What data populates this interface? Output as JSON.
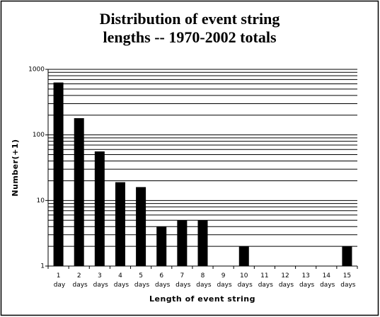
{
  "chart_data": {
    "type": "bar",
    "title": [
      "Distribution of event string",
      "lengths -- 1970-2002 totals"
    ],
    "x_label": "Length of event string",
    "y_label": "Number(+1)",
    "categories": [
      "1 day",
      "2 days",
      "3 days",
      "4 days",
      "5 days",
      "6 days",
      "7 days",
      "8 days",
      "9 days",
      "10 days",
      "11 days",
      "12 days",
      "13 days",
      "14 days",
      "15 days"
    ],
    "values": [
      630,
      180,
      56,
      19,
      16,
      4,
      5,
      5,
      1,
      2,
      1,
      1,
      1,
      1,
      2
    ],
    "color": "#000000",
    "log_scale": true,
    "ylim": [
      1,
      1000
    ],
    "yticks": [
      1,
      10,
      100,
      1000
    ],
    "grid": true,
    "minor_grid": true
  }
}
